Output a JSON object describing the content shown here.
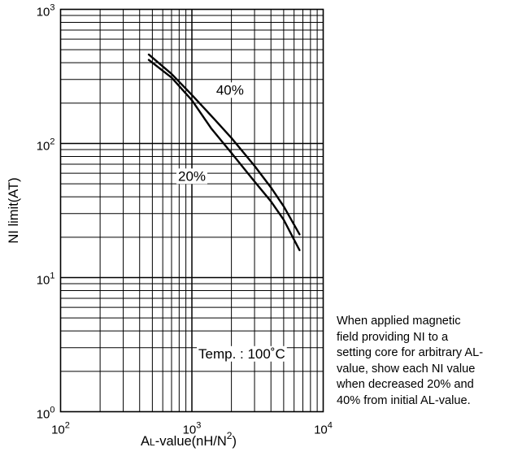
{
  "chart_data": {
    "type": "line",
    "ylabel": "NI limit(AT)",
    "xlabel": {
      "prefix": "A",
      "subscript": "L",
      "suffix": "-value(nH/N",
      "superscript": "2",
      "close": ")"
    },
    "x_scale": "log",
    "y_scale": "log",
    "xlim": [
      100,
      10000
    ],
    "ylim": [
      1,
      1000
    ],
    "x_ticks": [
      {
        "value": 100,
        "base": "10",
        "exp": "2"
      },
      {
        "value": 1000,
        "base": "10",
        "exp": "3"
      },
      {
        "value": 10000,
        "base": "10",
        "exp": "4"
      }
    ],
    "y_ticks": [
      {
        "value": 1,
        "base": "10",
        "exp": "0"
      },
      {
        "value": 10,
        "base": "10",
        "exp": "1"
      },
      {
        "value": 100,
        "base": "10",
        "exp": "2"
      },
      {
        "value": 1000,
        "base": "10",
        "exp": "3"
      }
    ],
    "grid": true,
    "series": [
      {
        "name": "40%",
        "x": [
          470,
          700,
          1000,
          1500,
          2000,
          3000,
          4000,
          5000,
          6600
        ],
        "y": [
          460,
          330,
          230,
          150,
          110,
          68,
          47,
          34,
          21
        ]
      },
      {
        "name": "20%",
        "x": [
          470,
          700,
          1000,
          1400,
          2000,
          3000,
          4000,
          5000,
          6600
        ],
        "y": [
          420,
          310,
          210,
          130,
          85,
          52,
          37,
          27,
          16
        ]
      }
    ],
    "series_labels": [
      {
        "text": "40%",
        "x": 1950,
        "y": 250
      },
      {
        "text": "20%",
        "x": 1000,
        "y": 57
      }
    ],
    "annotation": {
      "text": "Temp. : 100˚C",
      "x": 2400,
      "y": 2.7
    }
  },
  "note_lines": [
    "When applied magnetic",
    "field providing NI to a",
    "setting core for arbitrary AL-",
    "value, show each NI value",
    "when decreased 20% and",
    "40% from initial AL-value."
  ]
}
